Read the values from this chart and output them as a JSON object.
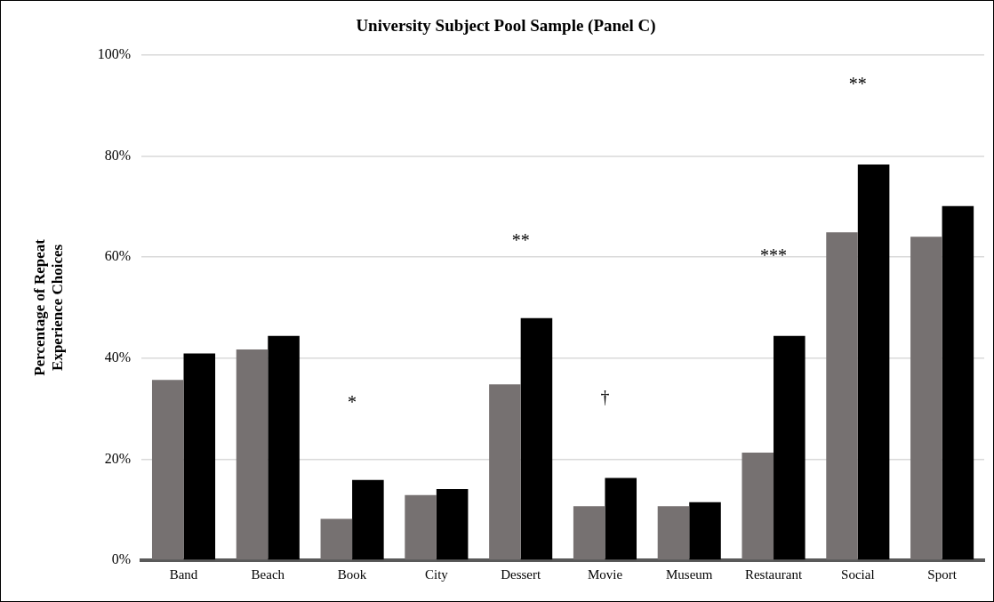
{
  "chart_data": {
    "type": "bar",
    "title": "University Subject Pool Sample (Panel C)",
    "ylabel": "Percentage of Repeat\nExperience Choices",
    "categories": [
      "Band",
      "Beach",
      "Book",
      "City",
      "Dessert",
      "Movie",
      "Museum",
      "Restaurant",
      "Social",
      "Sport"
    ],
    "series": [
      {
        "color": "#767171",
        "values": [
          35.7,
          41.7,
          8.2,
          12.9,
          34.8,
          10.7,
          10.7,
          21.3,
          64.9,
          64.0
        ]
      },
      {
        "color": "#000000",
        "values": [
          40.9,
          44.4,
          15.9,
          14.1,
          47.9,
          16.3,
          11.5,
          44.4,
          78.3,
          70.1
        ]
      }
    ],
    "ylim": [
      0,
      100
    ],
    "yticks": [
      {
        "value": 0,
        "label": "0%"
      },
      {
        "value": 20,
        "label": "20%"
      },
      {
        "value": 40,
        "label": "40%"
      },
      {
        "value": 60,
        "label": "60%"
      },
      {
        "value": 80,
        "label": "80%"
      },
      {
        "value": 100,
        "label": "100%"
      }
    ],
    "grid": "y",
    "annotations": [
      "*",
      "**",
      "†",
      "***",
      "**"
    ]
  }
}
